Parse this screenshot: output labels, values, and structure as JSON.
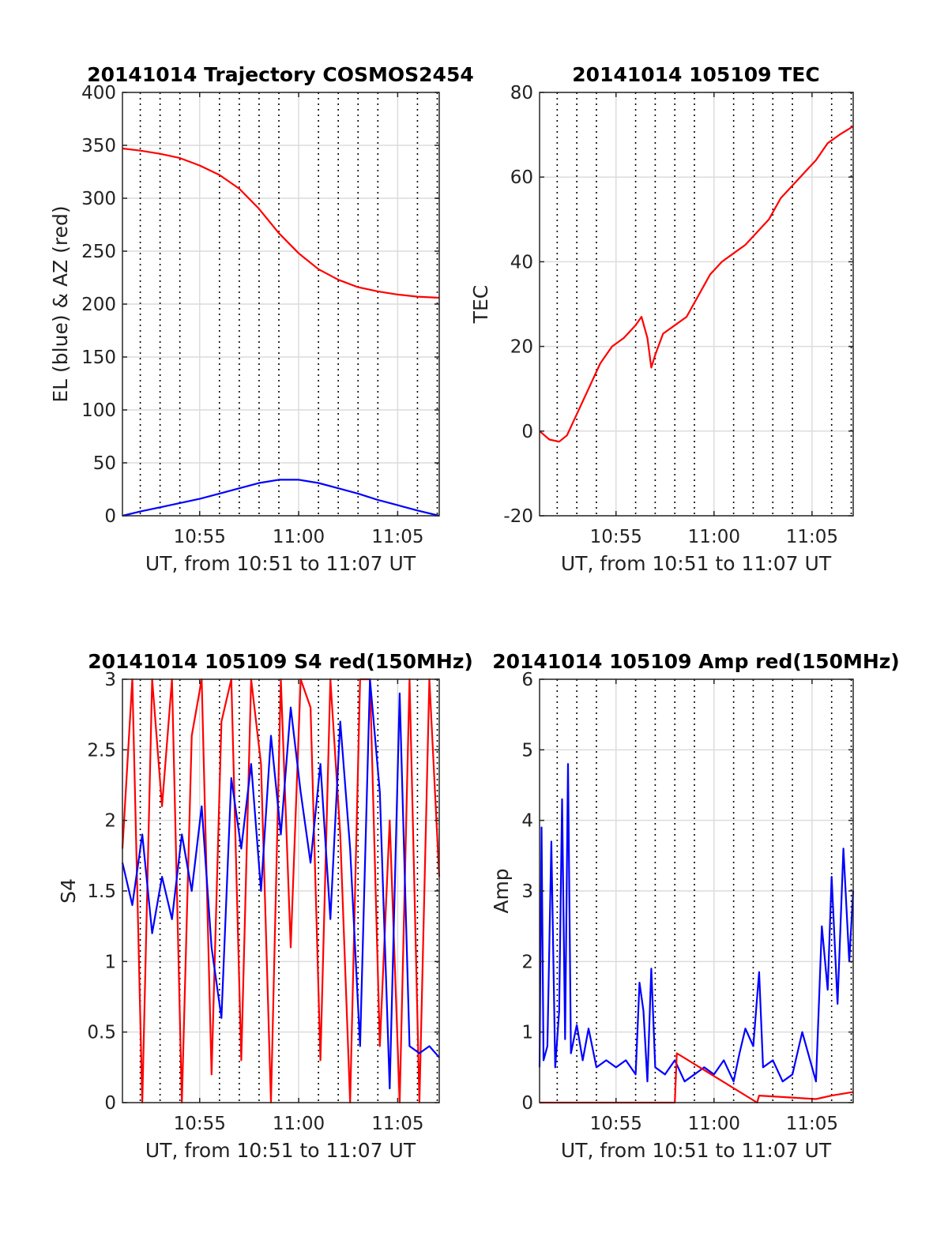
{
  "chart_data": [
    {
      "type": "line",
      "title": "20141014 Trajectory COSMOS2454",
      "xlabel": "UT, from 10:51 to 11:07 UT",
      "ylabel": "EL (blue) & AZ (red)",
      "x_units": "minutes after 10:00 UT",
      "xlim": [
        51.1,
        67.1
      ],
      "ylim": [
        0,
        400
      ],
      "xticks": [
        55,
        60,
        65
      ],
      "xtick_labels": [
        "10:55",
        "11:00",
        "11:05"
      ],
      "yticks": [
        0,
        50,
        100,
        150,
        200,
        250,
        300,
        350,
        400
      ],
      "ytick_labels": [
        "0",
        "50",
        "100",
        "150",
        "200",
        "250",
        "300",
        "350",
        "400"
      ],
      "minor_x_gridlines": [
        52,
        53,
        54,
        56,
        57,
        58,
        59,
        61,
        62,
        63,
        64,
        66,
        67
      ],
      "grid": true,
      "series": [
        {
          "color": "#ff0000",
          "x": [
            51.1,
            52,
            53,
            54,
            55,
            56,
            57,
            58,
            59,
            60,
            61,
            62,
            63,
            64,
            65,
            66,
            67.1
          ],
          "values": [
            347,
            345,
            342,
            338,
            331,
            322,
            309,
            290,
            267,
            248,
            233,
            223,
            216,
            212,
            209,
            207,
            206
          ]
        },
        {
          "color": "#0000ff",
          "x": [
            51.1,
            52,
            53,
            54,
            55,
            56,
            57,
            58,
            59,
            60,
            61,
            62,
            63,
            64,
            65,
            66,
            67.1
          ],
          "values": [
            0,
            4,
            8,
            12,
            16,
            21,
            26,
            31,
            34,
            34,
            31,
            26,
            21,
            15,
            10,
            5,
            0
          ]
        }
      ]
    },
    {
      "type": "line",
      "title": "20141014 105109 TEC",
      "xlabel": "UT, from 10:51 to 11:07 UT",
      "ylabel": "TEC",
      "x_units": "minutes after 10:00 UT",
      "xlim": [
        51.1,
        67.1
      ],
      "ylim": [
        -20,
        80
      ],
      "xticks": [
        55,
        60,
        65
      ],
      "xtick_labels": [
        "10:55",
        "11:00",
        "11:05"
      ],
      "yticks": [
        -20,
        0,
        20,
        40,
        60,
        80
      ],
      "ytick_labels": [
        "-20",
        "0",
        "20",
        "40",
        "60",
        "80"
      ],
      "minor_x_gridlines": [
        52,
        53,
        54,
        56,
        57,
        58,
        59,
        61,
        62,
        63,
        64,
        66,
        67
      ],
      "grid": true,
      "series": [
        {
          "color": "#ff0000",
          "x": [
            51.1,
            51.6,
            52.1,
            52.5,
            53,
            53.6,
            54.2,
            54.8,
            55.4,
            56,
            56.3,
            56.6,
            56.8,
            57,
            57.4,
            58,
            58.6,
            59.2,
            59.8,
            60.4,
            61,
            61.6,
            62.2,
            62.8,
            63.4,
            64,
            64.6,
            65.2,
            65.8,
            66.4,
            67.1
          ],
          "values": [
            0,
            -2,
            -2.5,
            -1,
            4,
            10,
            16,
            20,
            22,
            25,
            27,
            22,
            15,
            18,
            23,
            25,
            27,
            32,
            37,
            40,
            42,
            44,
            47,
            50,
            55,
            58,
            61,
            64,
            68,
            70,
            72
          ]
        }
      ]
    },
    {
      "type": "line",
      "title": "20141014 105109 S4 red(150MHz)",
      "xlabel": "UT, from 10:51 to 11:07 UT",
      "ylabel": "S4",
      "x_units": "minutes after 10:00 UT",
      "xlim": [
        51.1,
        67.1
      ],
      "ylim": [
        0,
        3
      ],
      "xticks": [
        55,
        60,
        65
      ],
      "xtick_labels": [
        "10:55",
        "11:00",
        "11:05"
      ],
      "yticks": [
        0,
        0.5,
        1,
        1.5,
        2,
        2.5,
        3
      ],
      "ytick_labels": [
        "0",
        "0.5",
        "1",
        "1.5",
        "2",
        "2.5",
        "3"
      ],
      "minor_x_gridlines": [
        52,
        53,
        54,
        56,
        57,
        58,
        59,
        61,
        62,
        63,
        64,
        66,
        67
      ],
      "grid": true,
      "series": [
        {
          "color": "#ff0000",
          "x": [
            51.1,
            51.6,
            52.1,
            52.6,
            53.1,
            53.6,
            54.1,
            54.6,
            55.1,
            55.6,
            56.1,
            56.6,
            57.1,
            57.6,
            58.1,
            58.6,
            59.1,
            59.6,
            60.1,
            60.6,
            61.1,
            61.6,
            62.1,
            62.6,
            63.1,
            63.6,
            64.1,
            64.6,
            65.1,
            65.6,
            66.1,
            66.6,
            67.1
          ],
          "values": [
            1.8,
            3,
            0,
            3,
            2.1,
            3,
            0,
            2.6,
            3,
            0.2,
            2.7,
            3,
            0.3,
            3,
            2.4,
            0,
            3,
            1.1,
            3,
            2.8,
            0.3,
            3,
            1.9,
            0,
            3,
            3,
            0.4,
            2,
            0,
            3,
            0,
            3,
            1.6
          ]
        },
        {
          "color": "#0000ff",
          "x": [
            51.1,
            51.6,
            52.1,
            52.6,
            53.1,
            53.6,
            54.1,
            54.6,
            55.1,
            55.6,
            56.1,
            56.6,
            57.1,
            57.6,
            58.1,
            58.6,
            59.1,
            59.6,
            60.1,
            60.6,
            61.1,
            61.6,
            62.1,
            62.6,
            63.1,
            63.6,
            64.1,
            64.6,
            65.1,
            65.6,
            66.1,
            66.6,
            67.1
          ],
          "values": [
            1.7,
            1.4,
            1.9,
            1.2,
            1.6,
            1.3,
            1.9,
            1.5,
            2.1,
            1.1,
            0.6,
            2.3,
            1.8,
            2.4,
            1.5,
            2.6,
            1.9,
            2.8,
            2.2,
            1.7,
            2.4,
            1.3,
            2.7,
            1.8,
            0.4,
            3,
            2.2,
            0.1,
            2.9,
            0.4,
            0.35,
            0.4,
            0.32
          ]
        }
      ]
    },
    {
      "type": "line",
      "title": "20141014 105109 Amp red(150MHz)",
      "xlabel": "UT, from 10:51 to 11:07 UT",
      "ylabel": "Amp",
      "x_units": "minutes after 10:00 UT",
      "xlim": [
        51.1,
        67.1
      ],
      "ylim": [
        0,
        6
      ],
      "xticks": [
        55,
        60,
        65
      ],
      "xtick_labels": [
        "10:55",
        "11:00",
        "11:05"
      ],
      "yticks": [
        0,
        1,
        2,
        3,
        4,
        5,
        6
      ],
      "ytick_labels": [
        "0",
        "1",
        "2",
        "3",
        "4",
        "5",
        "6"
      ],
      "minor_x_gridlines": [
        52,
        53,
        54,
        56,
        57,
        58,
        59,
        61,
        62,
        63,
        64,
        66,
        67
      ],
      "grid": true,
      "series": [
        {
          "color": "#0000ff",
          "x": [
            51.1,
            51.2,
            51.3,
            51.5,
            51.7,
            51.9,
            52.1,
            52.25,
            52.4,
            52.55,
            52.7,
            53,
            53.3,
            53.6,
            54,
            54.5,
            55,
            55.5,
            56,
            56.2,
            56.4,
            56.6,
            56.8,
            57,
            57.5,
            58,
            58.5,
            59,
            59.5,
            60,
            60.5,
            61,
            61.3,
            61.6,
            62,
            62.3,
            62.5,
            63,
            63.5,
            64,
            64.5,
            65,
            65.2,
            65.5,
            65.8,
            66,
            66.3,
            66.6,
            66.9,
            67.1
          ],
          "values": [
            0.5,
            3.9,
            0.6,
            0.8,
            3.7,
            0.5,
            1.3,
            4.3,
            0.9,
            4.8,
            0.7,
            1.1,
            0.6,
            1.05,
            0.5,
            0.6,
            0.5,
            0.6,
            0.4,
            1.7,
            1.3,
            0.3,
            1.9,
            0.5,
            0.4,
            0.6,
            0.3,
            0.4,
            0.5,
            0.4,
            0.6,
            0.3,
            0.7,
            1.05,
            0.8,
            1.85,
            0.5,
            0.6,
            0.3,
            0.4,
            1.0,
            0.5,
            0.3,
            2.5,
            1.6,
            3.2,
            1.4,
            3.6,
            2.0,
            3.0
          ]
        },
        {
          "color": "#ff0000",
          "x": [
            51.1,
            58,
            58.1,
            62.2,
            62.3,
            65.2,
            66,
            67.1
          ],
          "values": [
            0,
            0,
            0.7,
            0,
            0.1,
            0.05,
            0.1,
            0.15
          ]
        }
      ]
    }
  ]
}
